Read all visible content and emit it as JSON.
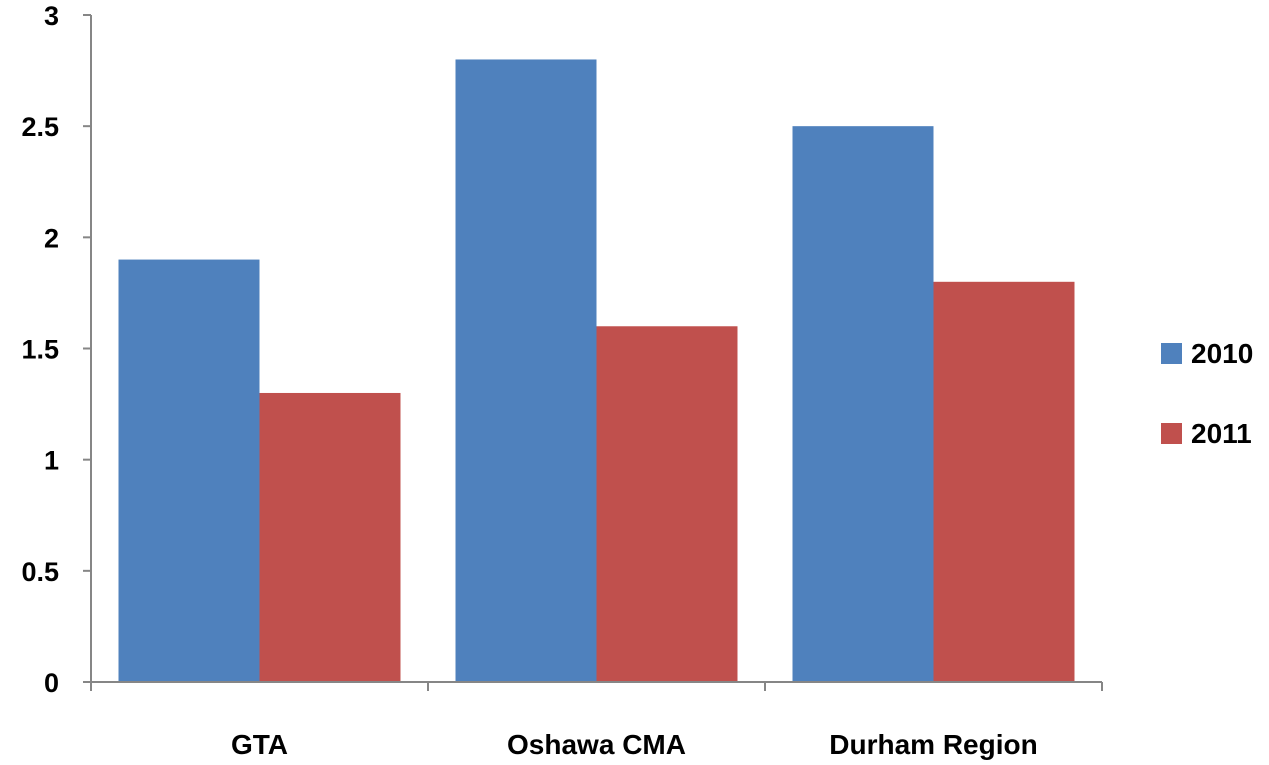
{
  "chart_data": {
    "type": "bar",
    "title": "",
    "xlabel": "",
    "ylabel": "",
    "categories": [
      "GTA",
      "Oshawa CMA",
      "Durham Region"
    ],
    "series": [
      {
        "name": "2010",
        "values": [
          1.9,
          2.8,
          2.5
        ],
        "color": "#4F81BD"
      },
      {
        "name": "2011",
        "values": [
          1.3,
          1.6,
          1.8
        ],
        "color": "#C0504D"
      }
    ],
    "ylim": [
      0,
      3
    ],
    "yticks": [
      "0",
      "0.5",
      "1",
      "1.5",
      "2",
      "2.5",
      "3"
    ],
    "grid": false,
    "legend_position": "right"
  }
}
